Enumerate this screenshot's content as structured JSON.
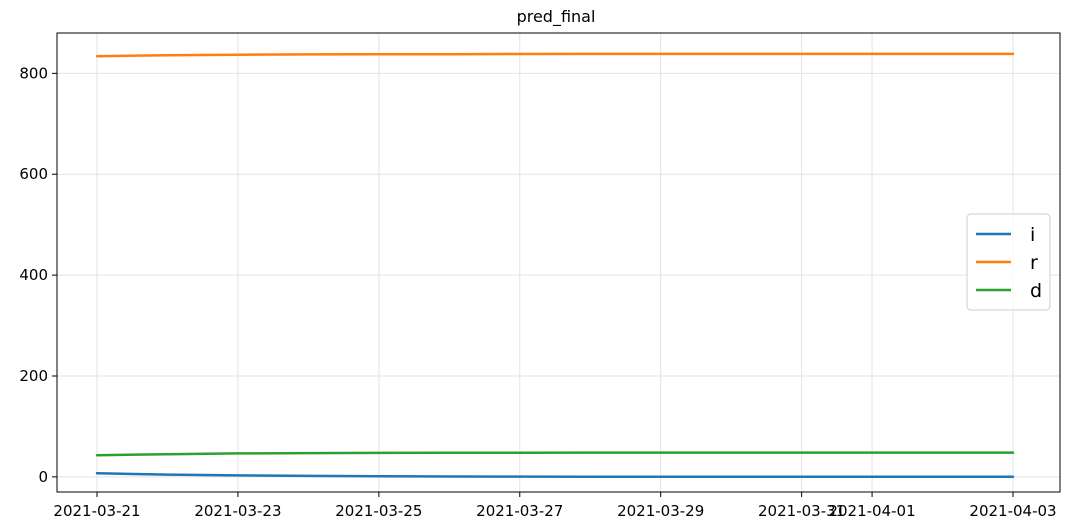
{
  "chart_data": {
    "type": "line",
    "title": "pred_final",
    "xlabel": "",
    "ylabel": "",
    "x": [
      "2021-03-21",
      "2021-03-22",
      "2021-03-23",
      "2021-03-24",
      "2021-03-25",
      "2021-03-26",
      "2021-03-27",
      "2021-03-28",
      "2021-03-29",
      "2021-03-30",
      "2021-03-31",
      "2021-04-01",
      "2021-04-02",
      "2021-04-03"
    ],
    "x_tick_labels": [
      "2021-03-21",
      "2021-03-23",
      "2021-03-25",
      "2021-03-27",
      "2021-03-29",
      "2021-03-31",
      "2021-04-01",
      "2021-04-03"
    ],
    "y_ticks": [
      0,
      200,
      400,
      600,
      800
    ],
    "ylim": [
      -30,
      880
    ],
    "grid": true,
    "legend_position": "center-right",
    "series": [
      {
        "name": "i",
        "color": "#1f77b4",
        "values": [
          7,
          4.5,
          3,
          2,
          1.2,
          0.8,
          0.5,
          0.3,
          0.2,
          0.15,
          0.1,
          0.1,
          0.1,
          0.1
        ]
      },
      {
        "name": "r",
        "color": "#ff7f0e",
        "values": [
          834,
          836,
          837,
          837.5,
          838,
          838,
          838.3,
          838.5,
          838.5,
          838.5,
          838.5,
          838.5,
          838.5,
          838.5
        ]
      },
      {
        "name": "d",
        "color": "#2ca02c",
        "values": [
          43,
          45,
          46.5,
          47.2,
          47.6,
          47.9,
          48,
          48.1,
          48.2,
          48.2,
          48.2,
          48.2,
          48.2,
          48.2
        ]
      }
    ]
  }
}
